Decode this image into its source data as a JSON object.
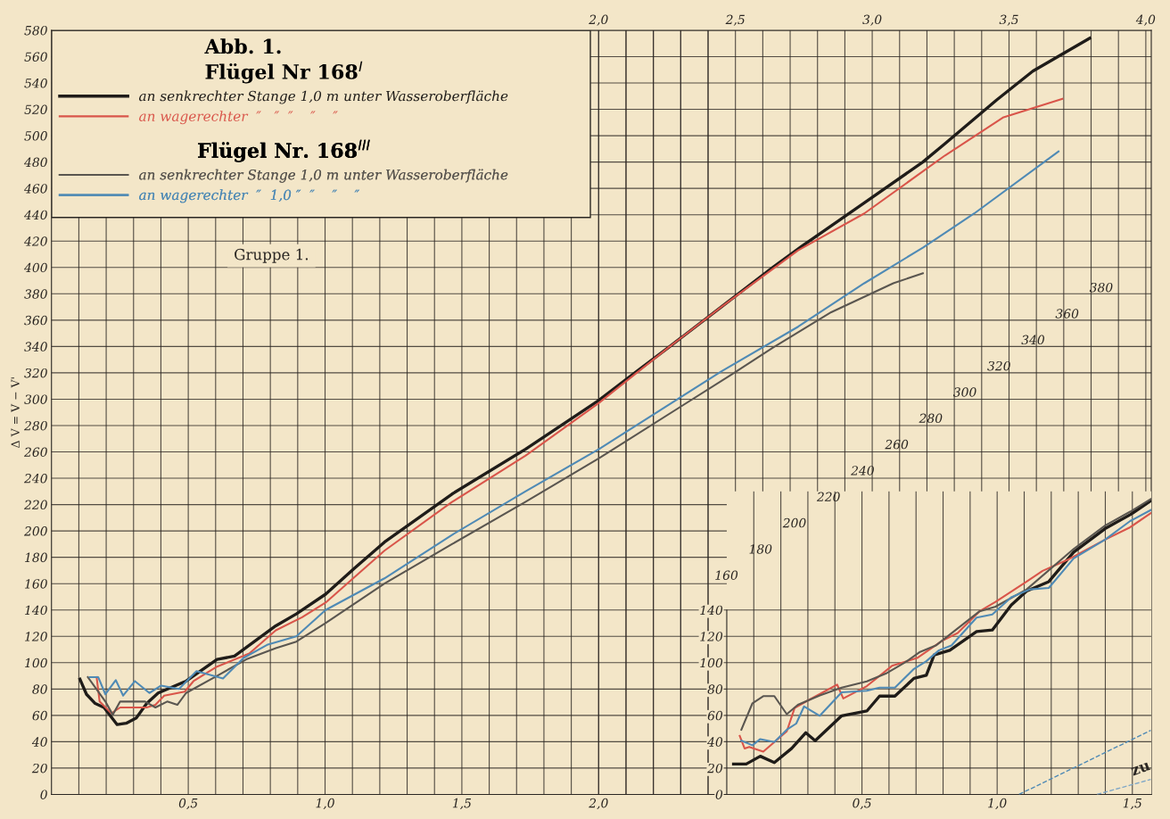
{
  "chart_data": [
    {
      "type": "line",
      "ylabel": "Δ V = V − V'",
      "legend_title": "Abb. 1.",
      "legend": "top left",
      "grid": true,
      "line_style": "solid",
      "marker": "none",
      "annotations": [
        "Flügel Nr 168$^{I}$",
        "Flügel Nr. 168$^{III}$",
        "Gruppe 1."
      ],
      "xlim": [
        0,
        4.02
      ],
      "ylim": [
        0,
        580
      ],
      "xticks": [
        {
          "value": 0.1,
          "label": null
        },
        {
          "value": 0.2,
          "label": null
        },
        {
          "value": 0.3,
          "label": null
        },
        {
          "value": 0.4,
          "label": null
        },
        {
          "value": 0.5,
          "label": "0,5"
        },
        {
          "value": 0.6,
          "label": null
        },
        {
          "value": 0.7,
          "label": null
        },
        {
          "value": 0.8,
          "label": null
        },
        {
          "value": 0.9,
          "label": null
        },
        {
          "value": 1.0,
          "label": "1,0"
        },
        {
          "value": 1.1,
          "label": null
        },
        {
          "value": 1.2,
          "label": null
        },
        {
          "value": 1.3,
          "label": null
        },
        {
          "value": 1.4,
          "label": null
        },
        {
          "value": 1.5,
          "label": "1,5"
        },
        {
          "value": 1.6,
          "label": null
        },
        {
          "value": 1.7,
          "label": null
        },
        {
          "value": 1.8,
          "label": null
        },
        {
          "value": 1.9,
          "label": null
        },
        {
          "value": 2.0,
          "label": "2,0"
        },
        {
          "value": 2.1,
          "label": null
        },
        {
          "value": 2.2,
          "label": null
        },
        {
          "value": 2.3,
          "label": null
        },
        {
          "value": 2.4,
          "label": null
        }
      ],
      "x2lim": [
        0,
        4.02
      ],
      "x2ticks": [
        {
          "value": 2.0,
          "label": "2,0"
        },
        {
          "value": 2.1,
          "label": null
        },
        {
          "value": 2.2,
          "label": null
        },
        {
          "value": 2.3,
          "label": null
        },
        {
          "value": 2.4,
          "label": null
        },
        {
          "value": 2.5,
          "label": "2,5"
        },
        {
          "value": 2.6,
          "label": null
        },
        {
          "value": 2.7,
          "label": null
        },
        {
          "value": 2.8,
          "label": null
        },
        {
          "value": 2.9,
          "label": null
        },
        {
          "value": 3.0,
          "label": "3,0"
        },
        {
          "value": 3.1,
          "label": null
        },
        {
          "value": 3.2,
          "label": null
        },
        {
          "value": 3.3,
          "label": null
        },
        {
          "value": 3.4,
          "label": null
        },
        {
          "value": 3.5,
          "label": "3,5"
        },
        {
          "value": 3.6,
          "label": null
        },
        {
          "value": 3.7,
          "label": null
        },
        {
          "value": 3.8,
          "label": null
        },
        {
          "value": 3.9,
          "label": null
        },
        {
          "value": 4.0,
          "label": "4,0"
        }
      ],
      "yticks": [
        0,
        20,
        40,
        60,
        80,
        100,
        120,
        140,
        160,
        180,
        200,
        220,
        240,
        260,
        280,
        300,
        320,
        340,
        360,
        380,
        400,
        420,
        440,
        460,
        480,
        500,
        520,
        540,
        560,
        580
      ],
      "series": [
        {
          "name": "an senkrechter Stange 1,0 m unter Wasseroberfläche",
          "color": "#1f1c19",
          "x": [
            0.104,
            0.128,
            0.16,
            0.192,
            0.24,
            0.273,
            0.31,
            0.348,
            0.39,
            0.492,
            0.605,
            0.669,
            0.82,
            0.895,
            1.002,
            1.109,
            1.217,
            1.464,
            1.732,
            2.0,
            2.126,
            2.26,
            2.448,
            2.636,
            2.742,
            2.971,
            3.185,
            3.266,
            3.454,
            3.587,
            3.795
          ],
          "values": [
            87.5,
            76,
            69,
            66,
            53,
            54,
            58,
            69,
            77,
            86,
            102.5,
            105,
            128,
            137,
            152,
            172,
            191.5,
            228,
            262,
            299,
            319,
            340,
            370,
            400,
            416,
            449,
            480,
            494,
            527,
            549,
            574
          ]
        },
        {
          "name": "an wagerechter  ″   ″  ″    ″    ″",
          "color": "#d9554a",
          "x": [
            0.165,
            0.176,
            0.219,
            0.251,
            0.348,
            0.38,
            0.412,
            0.487,
            0.519,
            0.605,
            0.723,
            0.82,
            0.916,
            1.002,
            1.217,
            1.464,
            1.732,
            2.0,
            2.26,
            2.448,
            2.729,
            2.971,
            3.266,
            3.48,
            3.695
          ],
          "values": [
            89,
            70.5,
            61.6,
            66,
            66,
            68,
            75,
            78,
            86,
            97,
            107,
            124.6,
            134.5,
            145.6,
            185,
            222,
            257,
            297,
            340,
            370,
            413,
            441,
            485,
            514,
            528
          ]
        },
        {
          "name": "an senkrechter Stange 1,0 m unter Wasseroberfläche",
          "color": "#5a5650",
          "x": [
            0.133,
            0.197,
            0.224,
            0.251,
            0.342,
            0.38,
            0.423,
            0.46,
            0.492,
            0.605,
            0.712,
            0.82,
            0.895,
            1.002,
            1.217,
            1.464,
            1.732,
            2.0,
            2.488,
            2.636,
            2.85,
            3.077,
            3.185
          ],
          "values": [
            89,
            70.5,
            60.5,
            70.5,
            70.5,
            66,
            70.5,
            68,
            77,
            90,
            102.5,
            111,
            116,
            130,
            160,
            190,
            222,
            255,
            319,
            339,
            366,
            388,
            395.6
          ]
        },
        {
          "name": "an wagerechter  ″  1,0 ″  ″    ″    ″",
          "color": "#4f8ab5",
          "x": [
            0.14,
            0.171,
            0.197,
            0.235,
            0.262,
            0.305,
            0.358,
            0.401,
            0.466,
            0.53,
            0.627,
            0.702,
            0.788,
            0.895,
            1.002,
            1.217,
            1.464,
            1.732,
            2.0,
            2.448,
            2.729,
            2.971,
            3.185,
            3.373,
            3.681
          ],
          "values": [
            89,
            89,
            76,
            86.8,
            75,
            86,
            77,
            82.6,
            80,
            93.6,
            88,
            103.6,
            113.5,
            120,
            140,
            164,
            197,
            230,
            262,
            321,
            355,
            388,
            415,
            441,
            488
          ]
        }
      ]
    },
    {
      "type": "line",
      "grid": true,
      "line_style": "solid",
      "marker": "none",
      "annotations": [
        "160",
        "180",
        "200",
        "220",
        "240",
        "260",
        "280",
        "300",
        "320",
        "340",
        "360",
        "380",
        "zu"
      ],
      "xlim": [
        0,
        1.57
      ],
      "ylim": [
        0,
        230
      ],
      "xticks": [
        {
          "value": 0.1,
          "label": null
        },
        {
          "value": 0.2,
          "label": null
        },
        {
          "value": 0.3,
          "label": null
        },
        {
          "value": 0.4,
          "label": null
        },
        {
          "value": 0.5,
          "label": "0,5"
        },
        {
          "value": 0.6,
          "label": null
        },
        {
          "value": 0.7,
          "label": null
        },
        {
          "value": 0.8,
          "label": null
        },
        {
          "value": 0.9,
          "label": null
        },
        {
          "value": 1.0,
          "label": "1,0"
        },
        {
          "value": 1.1,
          "label": null
        },
        {
          "value": 1.2,
          "label": null
        },
        {
          "value": 1.3,
          "label": null
        },
        {
          "value": 1.4,
          "label": null
        },
        {
          "value": 1.5,
          "label": "1,5"
        }
      ],
      "yticks": [
        0,
        20,
        40,
        60,
        80,
        100,
        120,
        140
      ],
      "series": [
        {
          "color": "#1f1c19",
          "x": [
            0.025,
            0.072,
            0.124,
            0.176,
            0.24,
            0.292,
            0.327,
            0.425,
            0.518,
            0.565,
            0.622,
            0.692,
            0.738,
            0.767,
            0.825,
            0.924,
            0.982,
            1.052,
            1.109,
            1.191,
            1.283,
            1.399,
            1.492,
            1.568
          ],
          "values": [
            23.1,
            23.1,
            29,
            24.2,
            34.9,
            46.8,
            40.8,
            59.7,
            63.3,
            74.6,
            74.6,
            88.1,
            90.5,
            105.9,
            109.4,
            123.6,
            124.8,
            143.7,
            154.4,
            161.5,
            183.9,
            201.7,
            212.3,
            222.9
          ]
        },
        {
          "color": "#d9554a",
          "x": [
            0.048,
            0.066,
            0.083,
            0.135,
            0.222,
            0.251,
            0.292,
            0.356,
            0.408,
            0.431,
            0.518,
            0.611,
            0.704,
            0.796,
            0.854,
            0.935,
            0.994,
            1.109,
            1.168,
            1.26,
            1.399,
            1.492,
            1.568
          ],
          "values": [
            44.4,
            34.9,
            36.1,
            32.5,
            47.9,
            65.6,
            70.4,
            77.5,
            83.4,
            72.8,
            82.2,
            97.6,
            103.5,
            116.5,
            122.5,
            139,
            146.1,
            161.5,
            169.7,
            178,
            193.4,
            202.8,
            213.5
          ]
        },
        {
          "color": "#5a5650",
          "x": [
            0.054,
            0.095,
            0.135,
            0.176,
            0.222,
            0.263,
            0.344,
            0.425,
            0.518,
            0.588,
            0.657,
            0.715,
            0.773,
            0.935,
            0.994,
            1.109,
            1.283,
            1.399,
            1.492,
            1.568
          ],
          "values": [
            49.1,
            69.2,
            74.6,
            74.6,
            60.9,
            68,
            75.1,
            81.1,
            85.8,
            91.7,
            99.9,
            108.2,
            113,
            139,
            142.5,
            155.6,
            186.3,
            204,
            214.6,
            224.1
          ]
        },
        {
          "color": "#4f8ab5",
          "x": [
            0.054,
            0.095,
            0.124,
            0.176,
            0.222,
            0.257,
            0.286,
            0.344,
            0.425,
            0.518,
            0.565,
            0.622,
            0.692,
            0.738,
            0.785,
            0.831,
            0.924,
            0.982,
            1.052,
            1.121,
            1.191,
            1.283,
            1.399,
            1.492,
            1.568
          ],
          "values": [
            40.8,
            37.3,
            42,
            39.7,
            49.1,
            53.8,
            66.8,
            59.7,
            77.5,
            78.7,
            81.1,
            81.1,
            95.2,
            101.1,
            109.4,
            113,
            134.2,
            136.6,
            149.6,
            155.6,
            156.7,
            179.2,
            193.4,
            207.5,
            215.8
          ]
        },
        {
          "color": "#4f8ab5",
          "line_style": "dashed",
          "x": [
            1.081,
            1.568
          ],
          "values": [
            0,
            48.6
          ]
        },
        {
          "color": "#7fa7c7",
          "line_style": "dashed",
          "x": [
            1.369,
            1.568
          ],
          "values": [
            0,
            11.4
          ]
        }
      ]
    }
  ]
}
